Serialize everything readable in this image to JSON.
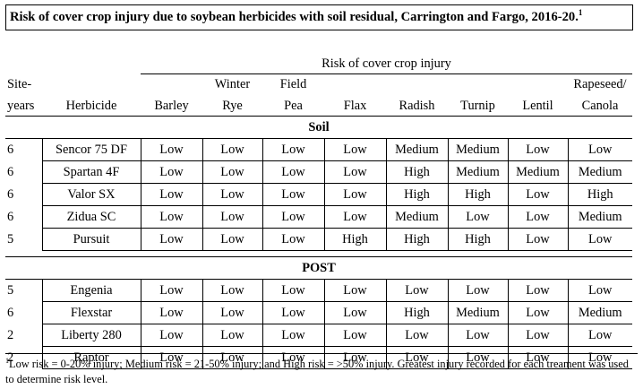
{
  "title": "Risk of cover crop injury due to soybean herbicides with soil residual, Carrington and Fargo, 2016-20.",
  "title_sup": "1",
  "header": {
    "span_label": "Risk of cover crop injury",
    "site_years_line1": "Site-",
    "site_years_line2": "years",
    "herbicide": "Herbicide",
    "crops": [
      {
        "line1": "",
        "line2": "Barley"
      },
      {
        "line1": "Winter",
        "line2": "Rye"
      },
      {
        "line1": "Field",
        "line2": "Pea"
      },
      {
        "line1": "",
        "line2": "Flax"
      },
      {
        "line1": "",
        "line2": "Radish"
      },
      {
        "line1": "",
        "line2": "Turnip"
      },
      {
        "line1": "",
        "line2": "Lentil"
      },
      {
        "line1": "Rapeseed/",
        "line2": "Canola"
      }
    ]
  },
  "sections": [
    {
      "label": "Soil",
      "rows": [
        {
          "site_years": "6",
          "herbicide": "Sencor 75 DF",
          "values": [
            "Low",
            "Low",
            "Low",
            "Low",
            "Medium",
            "Medium",
            "Low",
            "Low"
          ]
        },
        {
          "site_years": "6",
          "herbicide": "Spartan 4F",
          "values": [
            "Low",
            "Low",
            "Low",
            "Low",
            "High",
            "Medium",
            "Medium",
            "Medium"
          ]
        },
        {
          "site_years": "6",
          "herbicide": "Valor SX",
          "values": [
            "Low",
            "Low",
            "Low",
            "Low",
            "High",
            "High",
            "Low",
            "High"
          ]
        },
        {
          "site_years": "6",
          "herbicide": "Zidua SC",
          "values": [
            "Low",
            "Low",
            "Low",
            "Low",
            "Medium",
            "Low",
            "Low",
            "Medium"
          ]
        },
        {
          "site_years": "5",
          "herbicide": "Pursuit",
          "values": [
            "Low",
            "Low",
            "Low",
            "High",
            "High",
            "High",
            "Low",
            "Low"
          ]
        }
      ]
    },
    {
      "label": "POST",
      "rows": [
        {
          "site_years": "5",
          "herbicide": "Engenia",
          "values": [
            "Low",
            "Low",
            "Low",
            "Low",
            "Low",
            "Low",
            "Low",
            "Low"
          ]
        },
        {
          "site_years": "6",
          "herbicide": "Flexstar",
          "values": [
            "Low",
            "Low",
            "Low",
            "Low",
            "High",
            "Medium",
            "Low",
            "Medium"
          ]
        },
        {
          "site_years": "2",
          "herbicide": "Liberty 280",
          "values": [
            "Low",
            "Low",
            "Low",
            "Low",
            "Low",
            "Low",
            "Low",
            "Low"
          ]
        },
        {
          "site_years": "2",
          "herbicide": "Raptor",
          "values": [
            "Low",
            "Low",
            "Low",
            "Low",
            "Low",
            "Low",
            "Low",
            "Low"
          ]
        }
      ]
    }
  ],
  "footnote_sup": "1",
  "footnote": "Low risk = 0-20% injury; Medium risk = 21-50% injury; and High risk = >50% injury. Greatest injury recorded for each treament was used to determine risk level."
}
